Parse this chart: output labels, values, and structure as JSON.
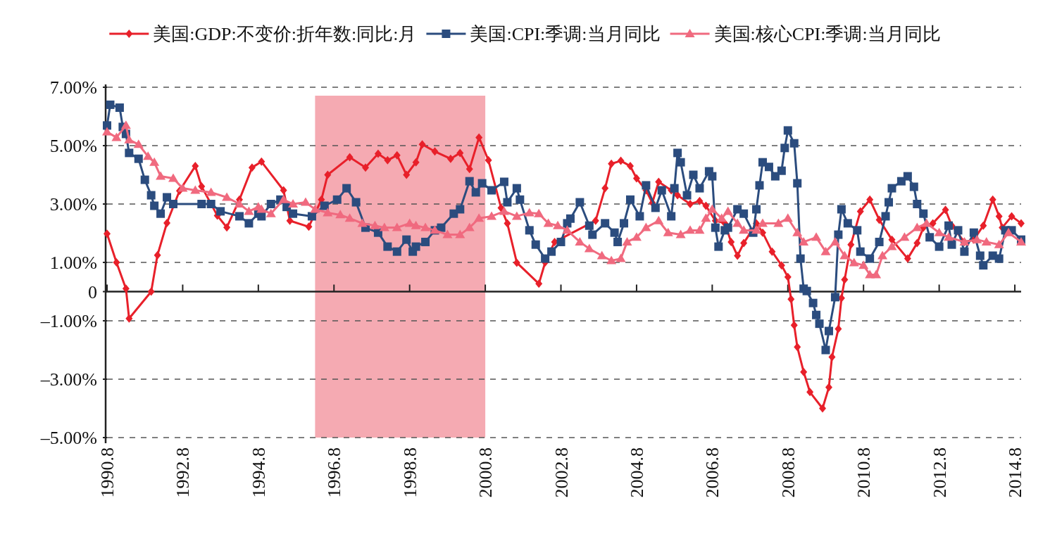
{
  "chart_data": {
    "type": "line",
    "legend": "top",
    "grid": "y",
    "xlim": [
      "1990-08",
      "2014-10"
    ],
    "xticks": [
      {
        "value": "1990-08",
        "label": "1990.8"
      },
      {
        "value": "1992-08",
        "label": "1992.8"
      },
      {
        "value": "1994-08",
        "label": "1994.8"
      },
      {
        "value": "1996-08",
        "label": "1996.8"
      },
      {
        "value": "1998-08",
        "label": "1998.8"
      },
      {
        "value": "2000-08",
        "label": "2000.8"
      },
      {
        "value": "2002-08",
        "label": "2002.8"
      },
      {
        "value": "2004-08",
        "label": "2004.8"
      },
      {
        "value": "2006-08",
        "label": "2006.8"
      },
      {
        "value": "2008-08",
        "label": "2008.8"
      },
      {
        "value": "2010-08",
        "label": "2010.8"
      },
      {
        "value": "2012-08",
        "label": "2012.8"
      },
      {
        "value": "2014-08",
        "label": "2014.8"
      }
    ],
    "ylim": [
      -5,
      7
    ],
    "yticks": [
      {
        "value": 7,
        "label": "7.00%"
      },
      {
        "value": 5,
        "label": "5.00%"
      },
      {
        "value": 3,
        "label": "3.00%"
      },
      {
        "value": 1,
        "label": "1.00%"
      },
      0,
      {
        "value": -1,
        "label": "–1.00%"
      },
      {
        "value": -3,
        "label": "–3.00%"
      },
      {
        "value": -5,
        "label": "–5.00%"
      }
    ],
    "bands": [
      {
        "axis": "x",
        "from": "1996-02",
        "to": "2000-08",
        "color": "#f5aab2"
      }
    ],
    "series": [
      {
        "name": "美国:GDP:不变价:折年数:同比:月",
        "color": "#e8202a",
        "marker": "diamond",
        "x": [
          "1990-08",
          "1990-11",
          "1991-02",
          "1991-03",
          "1991-10",
          "1991-12",
          "1992-03",
          "1992-07",
          "1992-12",
          "1993-02",
          "1993-07",
          "1993-10",
          "1994-02",
          "1994-06",
          "1994-09",
          "1995-04",
          "1995-06",
          "1995-12",
          "1996-04",
          "1996-06",
          "1997-01",
          "1997-06",
          "1997-10",
          "1998-01",
          "1998-04",
          "1998-07",
          "1998-10",
          "1998-12",
          "1999-04",
          "1999-09",
          "1999-12",
          "2000-03",
          "2000-06",
          "2000-09",
          "2001-01",
          "2001-03",
          "2001-06",
          "2002-01",
          "2002-03",
          "2002-06",
          "2003-07",
          "2003-10",
          "2003-12",
          "2004-03",
          "2004-06",
          "2004-08",
          "2004-11",
          "2005-01",
          "2005-03",
          "2005-07",
          "2005-09",
          "2006-01",
          "2006-04",
          "2006-06",
          "2006-09",
          "2006-12",
          "2007-02",
          "2007-04",
          "2007-06",
          "2007-10",
          "2007-12",
          "2008-03",
          "2008-06",
          "2008-08",
          "2008-09",
          "2008-10",
          "2008-11",
          "2009-01",
          "2009-03",
          "2009-07",
          "2009-09",
          "2009-10",
          "2009-12",
          "2010-01",
          "2010-02",
          "2010-04",
          "2010-07",
          "2010-10",
          "2011-01",
          "2011-05",
          "2011-10",
          "2012-01",
          "2012-03",
          "2012-06",
          "2012-10",
          "2012-12",
          "2013-04",
          "2013-07",
          "2013-10",
          "2014-01",
          "2014-03",
          "2014-04",
          "2014-07",
          "2014-10"
        ],
        "values": [
          1.98,
          1.0,
          0.1,
          -0.92,
          0.0,
          1.25,
          2.35,
          3.45,
          4.3,
          3.6,
          2.6,
          2.2,
          3.15,
          4.25,
          4.45,
          3.47,
          2.43,
          2.22,
          3.15,
          4.0,
          4.6,
          4.25,
          4.72,
          4.5,
          4.67,
          4.0,
          4.43,
          5.04,
          4.8,
          4.55,
          4.75,
          4.2,
          5.28,
          4.5,
          2.87,
          2.34,
          0.99,
          0.27,
          1.0,
          1.7,
          2.43,
          3.54,
          4.38,
          4.48,
          4.3,
          3.88,
          3.47,
          3.04,
          3.76,
          3.47,
          3.3,
          3.0,
          3.1,
          2.94,
          2.43,
          2.34,
          1.7,
          1.23,
          1.66,
          2.34,
          2.02,
          1.37,
          0.9,
          0.5,
          -0.26,
          -1.15,
          -1.9,
          -2.75,
          -3.44,
          -4.0,
          -3.28,
          -2.24,
          -1.28,
          -0.22,
          0.41,
          1.61,
          2.75,
          3.15,
          2.46,
          1.78,
          1.13,
          1.66,
          2.19,
          2.34,
          2.8,
          2.26,
          1.7,
          1.78,
          2.26,
          3.15,
          2.58,
          2.19,
          2.58,
          2.34
        ]
      },
      {
        "name": "美国:CPI:季调:当月同比",
        "color": "#2b4c7e",
        "marker": "square",
        "x": [
          "1990-08",
          "1990-09",
          "1990-12",
          "1991-01",
          "1991-02",
          "1991-03",
          "1991-06",
          "1991-08",
          "1991-10",
          "1991-11",
          "1992-01",
          "1992-03",
          "1992-05",
          "1993-02",
          "1993-05",
          "1993-08",
          "1994-02",
          "1994-05",
          "1994-08",
          "1994-09",
          "1994-12",
          "1995-03",
          "1995-05",
          "1995-07",
          "1996-01",
          "1996-05",
          "1996-09",
          "1996-12",
          "1997-03",
          "1997-06",
          "1997-10",
          "1998-01",
          "1998-04",
          "1998-07",
          "1998-09",
          "1998-10",
          "1999-01",
          "1999-04",
          "1999-06",
          "1999-10",
          "1999-12",
          "2000-03",
          "2000-05",
          "2000-07",
          "2000-10",
          "2001-02",
          "2001-03",
          "2001-06",
          "2001-07",
          "2001-10",
          "2001-12",
          "2002-03",
          "2002-05",
          "2002-08",
          "2002-10",
          "2002-11",
          "2003-02",
          "2003-05",
          "2003-06",
          "2003-10",
          "2004-01",
          "2004-02",
          "2004-04",
          "2004-06",
          "2004-09",
          "2004-11",
          "2005-02",
          "2005-04",
          "2005-07",
          "2005-08",
          "2005-09",
          "2005-10",
          "2005-12",
          "2006-02",
          "2006-04",
          "2006-07",
          "2006-08",
          "2006-09",
          "2006-10",
          "2006-12",
          "2007-01",
          "2007-04",
          "2007-06",
          "2007-09",
          "2007-10",
          "2007-11",
          "2007-12",
          "2008-02",
          "2008-04",
          "2008-06",
          "2008-07",
          "2008-08",
          "2008-10",
          "2008-11",
          "2008-12",
          "2009-01",
          "2009-02",
          "2009-04",
          "2009-05",
          "2009-06",
          "2009-08",
          "2009-09",
          "2009-11",
          "2009-12",
          "2010-01",
          "2010-03",
          "2010-06",
          "2010-07",
          "2010-10",
          "2011-01",
          "2011-03",
          "2011-04",
          "2011-05",
          "2011-08",
          "2011-10",
          "2011-12",
          "2012-01",
          "2012-03",
          "2012-05",
          "2012-08",
          "2012-11",
          "2012-12",
          "2013-02",
          "2013-04",
          "2013-07",
          "2013-09",
          "2013-10",
          "2014-01",
          "2014-03",
          "2014-05",
          "2014-07",
          "2014-10"
        ],
        "values": [
          5.69,
          6.4,
          6.3,
          5.64,
          5.4,
          4.75,
          4.55,
          3.83,
          3.3,
          2.94,
          2.67,
          3.23,
          3.0,
          3.0,
          3.0,
          2.75,
          2.58,
          2.34,
          2.67,
          2.58,
          3.0,
          3.15,
          2.9,
          2.67,
          2.58,
          2.94,
          3.15,
          3.54,
          3.06,
          2.19,
          2.02,
          1.54,
          1.37,
          1.78,
          1.37,
          1.54,
          1.7,
          2.1,
          2.19,
          2.67,
          2.82,
          3.78,
          3.4,
          3.71,
          3.47,
          3.76,
          3.06,
          3.54,
          3.15,
          2.1,
          1.61,
          1.13,
          1.37,
          1.7,
          2.34,
          2.5,
          3.06,
          2.26,
          1.95,
          2.34,
          2.02,
          1.7,
          2.34,
          3.15,
          2.58,
          3.64,
          2.87,
          3.47,
          2.58,
          3.54,
          4.75,
          4.43,
          3.3,
          4.0,
          3.54,
          4.12,
          3.95,
          2.19,
          1.54,
          2.1,
          2.19,
          2.82,
          2.67,
          2.02,
          2.82,
          3.64,
          4.43,
          4.27,
          3.95,
          4.14,
          4.92,
          5.52,
          5.08,
          3.71,
          1.13,
          0.1,
          0.02,
          -0.39,
          -0.8,
          -1.1,
          -2.0,
          -1.35,
          -0.19,
          1.95,
          2.82,
          2.34,
          2.1,
          1.37,
          1.13,
          1.7,
          2.58,
          3.06,
          3.54,
          3.78,
          3.95,
          3.59,
          3.0,
          2.67,
          1.86,
          1.54,
          2.26,
          1.61,
          2.1,
          1.37,
          2.02,
          1.23,
          0.9,
          1.23,
          1.13,
          2.1,
          2.1,
          1.78
        ]
      },
      {
        "name": "美国:核心CPI:季调:当月同比",
        "color": "#f06a7f",
        "marker": "triangle",
        "x": [
          "1990-08",
          "1990-11",
          "1991-02",
          "1991-03",
          "1991-06",
          "1991-09",
          "1991-11",
          "1992-01",
          "1992-05",
          "1992-08",
          "1992-12",
          "1993-05",
          "1993-10",
          "1994-02",
          "1994-05",
          "1994-08",
          "1994-09",
          "1994-12",
          "1995-04",
          "1995-07",
          "1995-11",
          "1996-02",
          "1996-06",
          "1996-10",
          "1997-01",
          "1997-05",
          "1997-09",
          "1997-12",
          "1998-04",
          "1998-08",
          "1998-10",
          "1999-01",
          "1999-04",
          "1999-08",
          "1999-12",
          "2000-03",
          "2000-06",
          "2000-10",
          "2001-02",
          "2001-06",
          "2001-10",
          "2002-01",
          "2002-04",
          "2002-07",
          "2002-10",
          "2003-02",
          "2003-05",
          "2003-09",
          "2003-12",
          "2004-03",
          "2004-05",
          "2004-08",
          "2004-11",
          "2005-03",
          "2005-06",
          "2005-10",
          "2006-01",
          "2006-04",
          "2006-06",
          "2006-08",
          "2006-11",
          "2007-01",
          "2007-04",
          "2007-06",
          "2007-10",
          "2007-12",
          "2008-05",
          "2008-08",
          "2008-11",
          "2009-01",
          "2009-05",
          "2009-08",
          "2009-11",
          "2010-02",
          "2010-05",
          "2010-08",
          "2010-10",
          "2010-12",
          "2011-02",
          "2011-05",
          "2011-09",
          "2012-01",
          "2012-04",
          "2012-08",
          "2012-11",
          "2013-04",
          "2013-08",
          "2013-11",
          "2014-03",
          "2014-06",
          "2014-10"
        ],
        "values": [
          5.47,
          5.28,
          5.69,
          5.2,
          5.04,
          4.63,
          4.43,
          3.95,
          3.88,
          3.54,
          3.47,
          3.4,
          3.23,
          3.0,
          2.75,
          2.9,
          2.82,
          2.67,
          3.15,
          3.0,
          3.06,
          2.82,
          2.7,
          2.63,
          2.51,
          2.34,
          2.26,
          2.19,
          2.19,
          2.34,
          2.26,
          2.19,
          2.1,
          1.95,
          1.95,
          2.19,
          2.51,
          2.58,
          2.75,
          2.58,
          2.7,
          2.67,
          2.34,
          2.26,
          2.1,
          1.7,
          1.47,
          1.23,
          1.06,
          1.13,
          1.7,
          1.86,
          2.19,
          2.43,
          2.02,
          1.95,
          2.1,
          2.1,
          2.51,
          2.82,
          2.51,
          2.75,
          2.34,
          2.1,
          2.1,
          2.34,
          2.34,
          2.51,
          2.02,
          1.7,
          1.86,
          1.37,
          1.7,
          1.23,
          0.99,
          0.9,
          0.58,
          0.58,
          1.23,
          1.54,
          1.86,
          2.19,
          2.34,
          2.02,
          1.86,
          1.7,
          1.78,
          1.7,
          1.61,
          2.02,
          1.7
        ]
      }
    ]
  }
}
